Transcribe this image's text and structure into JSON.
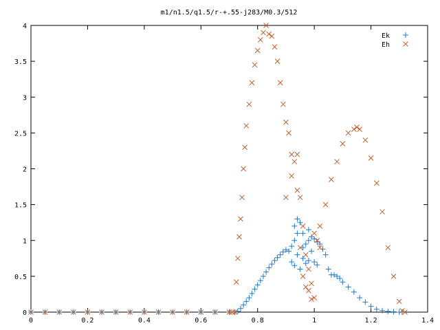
{
  "chart_data": {
    "type": "scatter",
    "title": "m1/n1.5/q1.5/r-+.55-j283/M0.3/512",
    "xlabel": "",
    "ylabel": "",
    "xlim": [
      0,
      1.4
    ],
    "ylim": [
      0,
      4
    ],
    "x_ticks": [
      "0",
      "0.2",
      "0.4",
      "0.6",
      "0.8",
      "1",
      "1.2",
      "1.4"
    ],
    "y_ticks": [
      "0",
      "0.5",
      "1",
      "1.5",
      "2",
      "2.5",
      "3",
      "3.5",
      "4"
    ],
    "grid": false,
    "legend_position": "top-right",
    "series": [
      {
        "name": "Ek",
        "marker": "plus",
        "color": "#1f78c8",
        "x": [
          0.0,
          0.05,
          0.1,
          0.15,
          0.2,
          0.25,
          0.3,
          0.35,
          0.4,
          0.45,
          0.5,
          0.55,
          0.6,
          0.65,
          0.7,
          0.72,
          0.73,
          0.74,
          0.75,
          0.76,
          0.77,
          0.78,
          0.79,
          0.8,
          0.81,
          0.82,
          0.83,
          0.84,
          0.85,
          0.86,
          0.87,
          0.88,
          0.89,
          0.9,
          0.91,
          0.92,
          0.93,
          0.94,
          0.95,
          0.96,
          0.97,
          0.98,
          0.99,
          1.0,
          1.01,
          1.02,
          1.03,
          1.04,
          1.05,
          1.06,
          1.07,
          1.08,
          1.09,
          1.1,
          1.12,
          1.14,
          1.16,
          1.18,
          1.2,
          1.22,
          1.24,
          1.26,
          1.28,
          1.3,
          1.31,
          0.92,
          0.93,
          0.94,
          0.95,
          0.96,
          0.97,
          0.98,
          0.99,
          1.0,
          1.01,
          0.93,
          0.94,
          0.96,
          0.98
        ],
        "y": [
          0.0,
          0.0,
          0.0,
          0.0,
          0.0,
          0.0,
          0.0,
          0.0,
          0.0,
          0.0,
          0.0,
          0.0,
          0.0,
          0.0,
          0.0,
          0.0,
          0.01,
          0.05,
          0.1,
          0.15,
          0.2,
          0.26,
          0.32,
          0.38,
          0.44,
          0.5,
          0.56,
          0.62,
          0.67,
          0.72,
          0.76,
          0.8,
          0.84,
          0.87,
          0.85,
          0.92,
          1.2,
          1.3,
          1.25,
          1.1,
          0.95,
          1.0,
          1.05,
          1.02,
          0.98,
          0.95,
          0.88,
          0.8,
          0.6,
          0.52,
          0.52,
          0.5,
          0.47,
          0.42,
          0.35,
          0.28,
          0.2,
          0.14,
          0.08,
          0.04,
          0.02,
          0.01,
          0.005,
          0.0,
          0.0,
          0.7,
          0.65,
          0.8,
          0.6,
          0.75,
          0.68,
          0.72,
          0.85,
          0.7,
          0.66,
          1.0,
          1.1,
          0.9,
          1.15
        ]
      },
      {
        "name": "Eh",
        "marker": "cross",
        "color": "#c0602a",
        "x": [
          0.0,
          0.05,
          0.1,
          0.15,
          0.2,
          0.25,
          0.3,
          0.35,
          0.4,
          0.45,
          0.5,
          0.55,
          0.6,
          0.65,
          0.7,
          0.71,
          0.72,
          0.725,
          0.73,
          0.735,
          0.74,
          0.745,
          0.75,
          0.755,
          0.76,
          0.77,
          0.78,
          0.79,
          0.8,
          0.81,
          0.82,
          0.83,
          0.84,
          0.85,
          0.86,
          0.87,
          0.88,
          0.89,
          0.9,
          0.91,
          0.92,
          0.93,
          0.94,
          0.95,
          0.96,
          0.97,
          0.98,
          0.99,
          1.0,
          1.02,
          1.04,
          1.06,
          1.08,
          1.1,
          1.12,
          1.14,
          1.15,
          1.16,
          1.18,
          1.2,
          1.22,
          1.24,
          1.26,
          1.28,
          1.3,
          1.31,
          1.32,
          0.9,
          0.92,
          0.94,
          0.96,
          0.98,
          1.0,
          1.02,
          0.95,
          0.97,
          0.99,
          1.01
        ],
        "y": [
          0.0,
          0.0,
          0.0,
          0.0,
          0.0,
          0.0,
          0.0,
          0.0,
          0.0,
          0.0,
          0.0,
          0.0,
          0.0,
          0.0,
          0.0,
          0.0,
          0.0,
          0.42,
          0.75,
          1.05,
          1.3,
          1.6,
          2.0,
          2.3,
          2.6,
          2.9,
          3.2,
          3.45,
          3.65,
          3.8,
          3.9,
          4.0,
          3.88,
          3.85,
          3.7,
          3.5,
          3.2,
          2.9,
          2.65,
          2.5,
          2.2,
          2.1,
          1.7,
          1.6,
          1.2,
          0.8,
          0.6,
          0.4,
          0.2,
          0.9,
          1.5,
          1.85,
          2.1,
          2.35,
          2.5,
          2.55,
          2.58,
          2.55,
          2.4,
          2.15,
          1.8,
          1.4,
          0.9,
          0.5,
          0.15,
          0.02,
          0.0,
          1.6,
          1.9,
          2.2,
          0.5,
          0.3,
          1.1,
          1.2,
          0.9,
          0.35,
          0.18,
          1.0
        ]
      }
    ]
  }
}
